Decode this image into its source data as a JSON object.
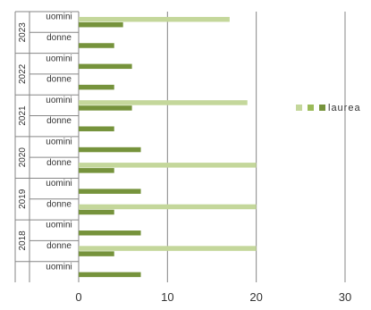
{
  "chart_data": {
    "type": "bar",
    "orientation": "horizontal",
    "title": "",
    "xlabel": "",
    "ylabel": "",
    "xlim": [
      0,
      30
    ],
    "xticks": [
      0,
      10,
      20,
      30
    ],
    "grid": "vertical",
    "legend_position": "right",
    "legend_label": "laurea",
    "groups": [
      {
        "year": "2023",
        "categories": [
          "uomini",
          "donne"
        ]
      },
      {
        "year": "2022",
        "categories": [
          "uomini",
          "donne"
        ]
      },
      {
        "year": "2021",
        "categories": [
          "uomini",
          "donne"
        ]
      },
      {
        "year": "2020",
        "categories": [
          "uomini",
          "donne"
        ]
      },
      {
        "year": "2019",
        "categories": [
          "uomini",
          "donne"
        ]
      },
      {
        "year": "2018",
        "categories": [
          "uomini",
          "donne"
        ]
      },
      {
        "year": "",
        "categories": [
          "uomini"
        ]
      }
    ],
    "series": [
      {
        "color": "#c4d79b",
        "values": [
          17,
          null,
          null,
          null,
          19,
          null,
          null,
          20,
          null,
          20,
          null,
          20,
          null
        ]
      },
      {
        "color": "#76933c",
        "values": [
          5,
          4,
          6,
          4,
          6,
          4,
          7,
          4,
          7,
          4,
          7,
          4,
          7
        ]
      }
    ],
    "legend_swatches": [
      {
        "color": "#c4d79b"
      },
      {
        "color": "#9bbb59"
      },
      {
        "color": "#76933c"
      }
    ]
  }
}
